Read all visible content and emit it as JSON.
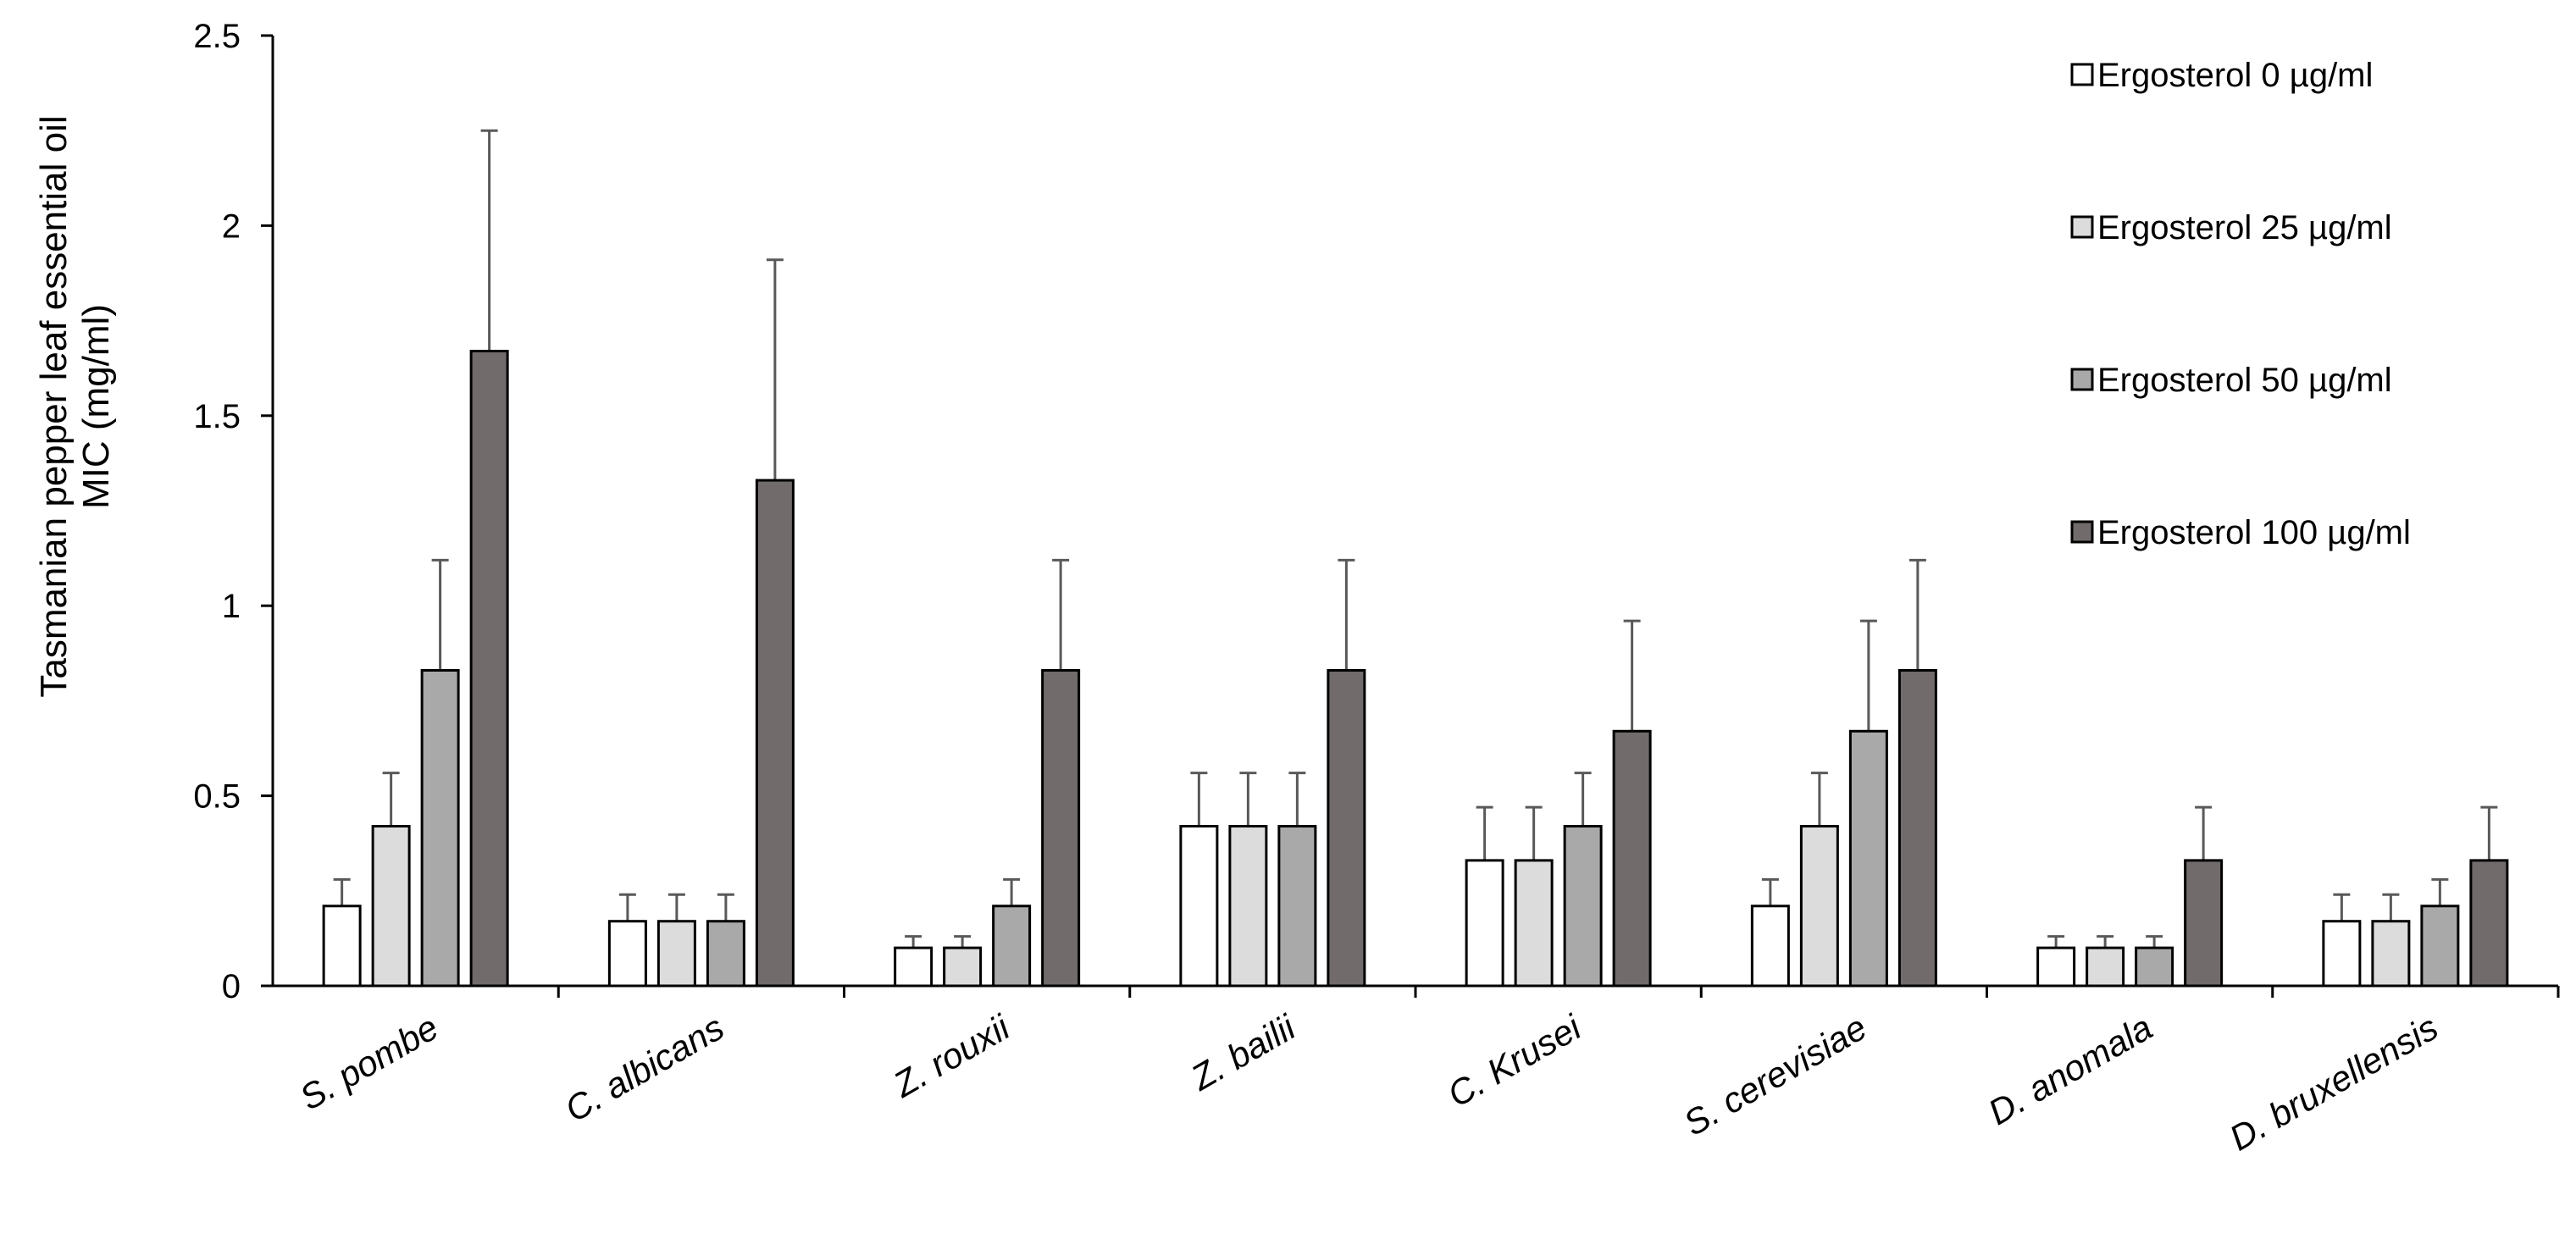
{
  "chart_data": {
    "type": "bar",
    "ylabel_line1": "Tasmanian pepper leaf essential oil",
    "ylabel_line2": "MIC (mg/ml)",
    "ylim": [
      0,
      2.5
    ],
    "yticks": [
      "0",
      "0.5",
      "1",
      "1.5",
      "2",
      "2.5"
    ],
    "grid": false,
    "legend_position": "top-right",
    "categories": [
      "S. pombe",
      "C. albicans",
      "Z. rouxii",
      "Z. bailii",
      "C. Krusei",
      "S. cerevisiae",
      "D. anomala",
      "D. bruxellensis"
    ],
    "series": [
      {
        "name": "Ergosterol 0 µg/ml",
        "color": "#ffffff",
        "values": [
          0.21,
          0.17,
          0.1,
          0.42,
          0.33,
          0.21,
          0.1,
          0.17
        ],
        "errors": [
          0.07,
          0.07,
          0.03,
          0.14,
          0.14,
          0.07,
          0.03,
          0.07
        ]
      },
      {
        "name": "Ergosterol 25 µg/ml",
        "color": "#dcdcdc",
        "values": [
          0.42,
          0.17,
          0.1,
          0.42,
          0.33,
          0.42,
          0.1,
          0.17
        ],
        "errors": [
          0.14,
          0.07,
          0.03,
          0.14,
          0.14,
          0.14,
          0.03,
          0.07
        ]
      },
      {
        "name": "Ergosterol 50 µg/ml",
        "color": "#a9a9a9",
        "values": [
          0.83,
          0.17,
          0.21,
          0.42,
          0.42,
          0.67,
          0.1,
          0.21
        ],
        "errors": [
          0.29,
          0.07,
          0.07,
          0.14,
          0.14,
          0.29,
          0.03,
          0.07
        ]
      },
      {
        "name": "Ergosterol 100 µg/ml",
        "color": "#716b6b",
        "values": [
          1.67,
          1.33,
          0.83,
          0.83,
          0.67,
          0.83,
          0.33,
          0.33
        ],
        "errors": [
          0.58,
          0.58,
          0.29,
          0.29,
          0.29,
          0.29,
          0.14,
          0.14
        ]
      }
    ]
  }
}
